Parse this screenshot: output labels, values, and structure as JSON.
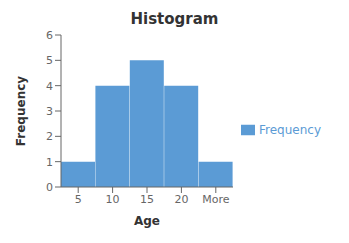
{
  "chart_data": {
    "type": "bar",
    "title": "Histogram",
    "xlabel": "Age",
    "ylabel": "Frequency",
    "categories": [
      "5",
      "10",
      "15",
      "20",
      "More"
    ],
    "series": [
      {
        "name": "Frequency",
        "color": "#5b9bd5",
        "values": [
          1,
          4,
          5,
          4,
          1
        ]
      }
    ],
    "ylim": [
      0,
      6
    ],
    "yticks": [
      0,
      1,
      2,
      3,
      4,
      5,
      6
    ],
    "grid": false,
    "legend": "right"
  }
}
